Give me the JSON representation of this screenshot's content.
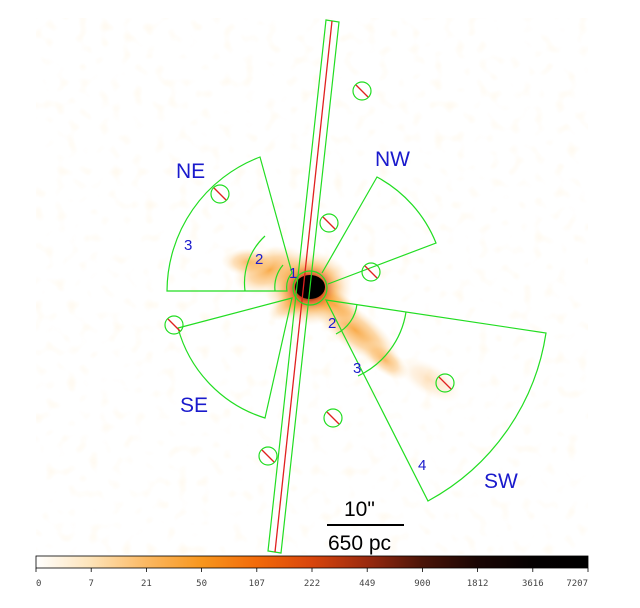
{
  "labels": {
    "ne": "NE",
    "nw": "NW",
    "se": "SE",
    "sw": "SW"
  },
  "region_numbers": {
    "ne_3": "3",
    "ne_2": "2",
    "core_1": "1",
    "sw_2": "2",
    "sw_3": "3",
    "sw_4": "4"
  },
  "scale_bar": {
    "angular": "10\"",
    "physical": "650 pc"
  },
  "colorbar": {
    "ticks": [
      "0",
      "7",
      "21",
      "50",
      "107",
      "222",
      "449",
      "900",
      "1812",
      "3616",
      "7207"
    ],
    "colors": [
      "#ffffff",
      "#fde3b8",
      "#fbb862",
      "#f7961e",
      "#f26a0a",
      "#d8450c",
      "#9a2a0f",
      "#4a1408",
      "#1a0604",
      "#050101",
      "#000000"
    ]
  },
  "colors": {
    "region": "#22dd22",
    "label": "#1a1acc",
    "exclusion_slash": "#e02020"
  }
}
